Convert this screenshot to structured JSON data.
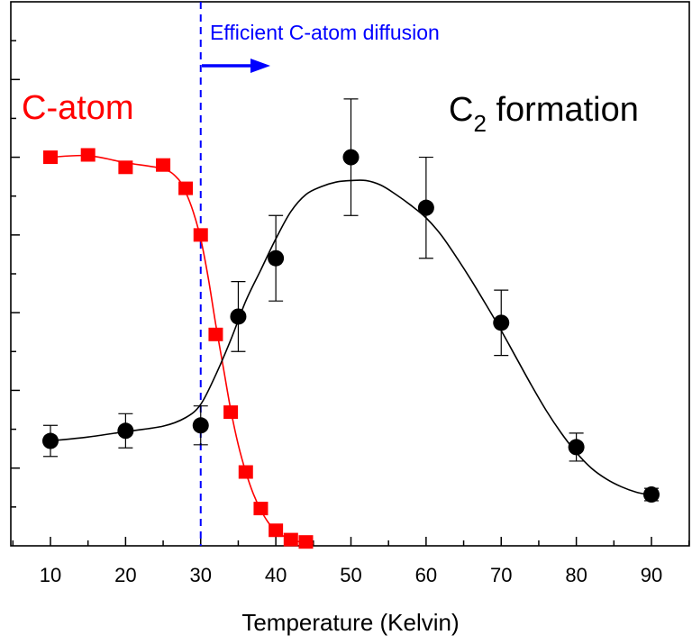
{
  "chart_data": {
    "type": "scatter",
    "xlabel": "Temperature (Kelvin)",
    "ylabel": "",
    "xlim": [
      5,
      95
    ],
    "ylim": [
      0,
      7
    ],
    "x_ticks": [
      10,
      20,
      30,
      40,
      50,
      60,
      70,
      80,
      90
    ],
    "y_ticks_major": [
      1,
      2,
      3,
      4,
      5,
      6,
      7
    ],
    "y_tick_labels_shown": false,
    "grid": false,
    "legend": "none",
    "series": [
      {
        "name": "C-atom",
        "color": "#ff0000",
        "marker": "square",
        "points": [
          {
            "x": 10,
            "y": 5.0
          },
          {
            "x": 15,
            "y": 5.03
          },
          {
            "x": 20,
            "y": 4.87
          },
          {
            "x": 25,
            "y": 4.9
          },
          {
            "x": 28,
            "y": 4.6
          },
          {
            "x": 30,
            "y": 4.0
          },
          {
            "x": 32,
            "y": 2.72
          },
          {
            "x": 34,
            "y": 1.72
          },
          {
            "x": 36,
            "y": 0.95
          },
          {
            "x": 38,
            "y": 0.48
          },
          {
            "x": 40,
            "y": 0.2
          },
          {
            "x": 42,
            "y": 0.08
          },
          {
            "x": 44,
            "y": 0.05
          }
        ],
        "curve": [
          [
            10,
            5.0
          ],
          [
            15,
            5.02
          ],
          [
            20,
            4.93
          ],
          [
            25,
            4.85
          ],
          [
            27,
            4.72
          ],
          [
            28,
            4.55
          ],
          [
            29,
            4.3
          ],
          [
            30,
            3.95
          ],
          [
            31,
            3.45
          ],
          [
            32,
            2.85
          ],
          [
            33,
            2.3
          ],
          [
            34,
            1.75
          ],
          [
            35,
            1.3
          ],
          [
            36,
            0.95
          ],
          [
            37,
            0.67
          ],
          [
            38,
            0.46
          ],
          [
            39,
            0.3
          ],
          [
            40,
            0.19
          ],
          [
            42,
            0.08
          ],
          [
            44,
            0.04
          ],
          [
            45,
            0.03
          ]
        ],
        "label": "C-atom"
      },
      {
        "name": "C2 formation",
        "color": "#000000",
        "marker": "circle",
        "points": [
          {
            "x": 10,
            "y": 1.35,
            "err": 0.2
          },
          {
            "x": 20,
            "y": 1.48,
            "err": 0.22
          },
          {
            "x": 30,
            "y": 1.55,
            "err": 0.25
          },
          {
            "x": 35,
            "y": 2.95,
            "err": 0.45
          },
          {
            "x": 40,
            "y": 3.7,
            "err": 0.55
          },
          {
            "x": 50,
            "y": 5.0,
            "err": 0.75
          },
          {
            "x": 60,
            "y": 4.35,
            "err": 0.65
          },
          {
            "x": 70,
            "y": 2.87,
            "err": 0.42
          },
          {
            "x": 80,
            "y": 1.27,
            "err": 0.18
          },
          {
            "x": 90,
            "y": 0.66,
            "err": 0.08
          }
        ],
        "curve": [
          [
            10,
            1.35
          ],
          [
            15,
            1.4
          ],
          [
            20,
            1.47
          ],
          [
            25,
            1.54
          ],
          [
            28,
            1.65
          ],
          [
            30,
            1.82
          ],
          [
            32,
            2.2
          ],
          [
            34,
            2.65
          ],
          [
            36,
            3.15
          ],
          [
            38,
            3.55
          ],
          [
            40,
            3.95
          ],
          [
            42,
            4.3
          ],
          [
            44,
            4.52
          ],
          [
            46,
            4.62
          ],
          [
            48,
            4.68
          ],
          [
            50,
            4.7
          ],
          [
            52,
            4.7
          ],
          [
            54,
            4.64
          ],
          [
            56,
            4.52
          ],
          [
            58,
            4.38
          ],
          [
            60,
            4.22
          ],
          [
            62,
            4.0
          ],
          [
            64,
            3.72
          ],
          [
            66,
            3.42
          ],
          [
            68,
            3.1
          ],
          [
            70,
            2.77
          ],
          [
            72,
            2.42
          ],
          [
            74,
            2.07
          ],
          [
            76,
            1.74
          ],
          [
            78,
            1.45
          ],
          [
            80,
            1.2
          ],
          [
            82,
            1.0
          ],
          [
            84,
            0.86
          ],
          [
            86,
            0.76
          ],
          [
            88,
            0.69
          ],
          [
            90,
            0.65
          ]
        ]
      }
    ],
    "annotations": {
      "c_atom": "C-atom",
      "c2_prefix": "C",
      "c2_subscript": "2",
      "c2_suffix": " formation",
      "diffusion": "Efficient C-atom diffusion",
      "vline_x": 30
    }
  },
  "colors": {
    "c_atom": "#ff0000",
    "c2": "#000000",
    "diffusion": "#0000ff"
  }
}
